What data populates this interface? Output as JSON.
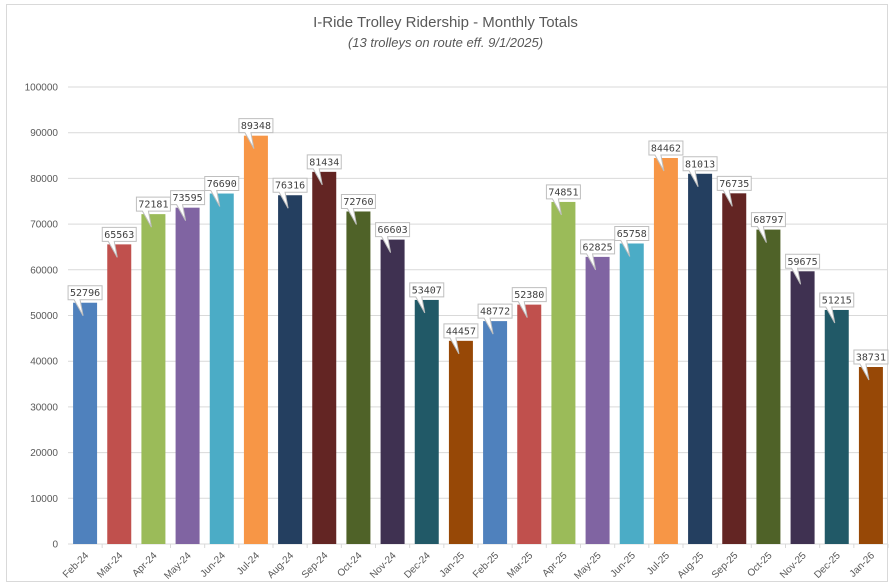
{
  "chart_data": {
    "type": "bar",
    "title": "I-Ride Trolley Ridership - Monthly Totals",
    "subtitle": "(13 trolleys on route eff. 9/1/2025)",
    "xlabel": "",
    "ylabel": "",
    "ylim": [
      0,
      100000
    ],
    "yticks": [
      0,
      10000,
      20000,
      30000,
      40000,
      50000,
      60000,
      70000,
      80000,
      90000,
      100000
    ],
    "grid": true,
    "legend": "none",
    "categories": [
      "Feb-24",
      "Mar-24",
      "Apr-24",
      "May-24",
      "Jun-24",
      "Jul-24",
      "Aug-24",
      "Sep-24",
      "Oct-24",
      "Nov-24",
      "Dec-24",
      "Jan-25",
      "Feb-25",
      "Mar-25",
      "Apr-25",
      "May-25",
      "Jun-25",
      "Jul-25",
      "Aug-25",
      "Sep-25",
      "Oct-25",
      "Nov-25",
      "Dec-25",
      "Jan-26"
    ],
    "values": [
      52796,
      65563,
      72181,
      73595,
      76690,
      89348,
      76316,
      81434,
      72760,
      66603,
      53407,
      44457,
      48772,
      52380,
      74851,
      62825,
      65758,
      84462,
      81013,
      76735,
      68797,
      59675,
      51215,
      38731
    ],
    "colors": [
      "#4F81BD",
      "#C0504D",
      "#9BBB59",
      "#8064A2",
      "#4BACC6",
      "#F79646",
      "#243F60",
      "#632523",
      "#4F6228",
      "#3F3151",
      "#215967",
      "#974806"
    ]
  }
}
